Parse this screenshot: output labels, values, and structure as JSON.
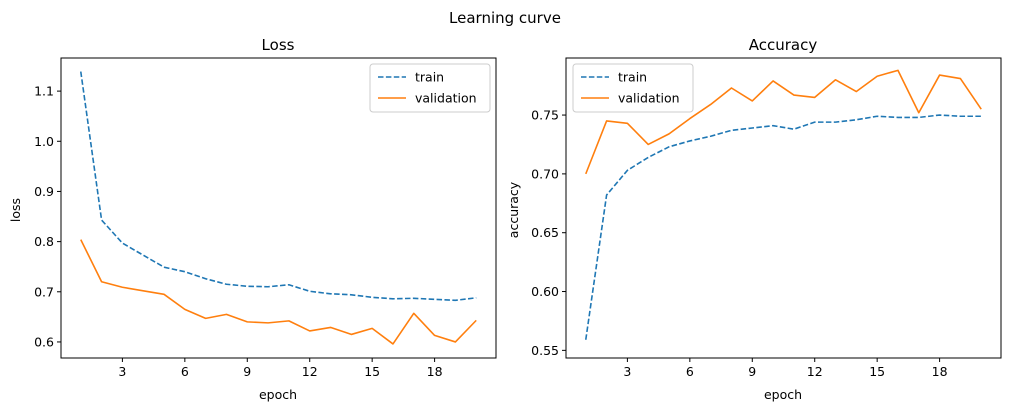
{
  "figure": {
    "suptitle": "Learning curve"
  },
  "chart_data": [
    {
      "type": "line",
      "title": "Loss",
      "xlabel": "epoch",
      "ylabel": "loss",
      "xlim": [
        0.05,
        20.95
      ],
      "ylim": [
        0.568,
        1.166
      ],
      "xticks": [
        3,
        6,
        9,
        12,
        15,
        18
      ],
      "yticks": [
        0.6,
        0.7,
        0.8,
        0.9,
        1.0,
        1.1
      ],
      "ytick_format": "1",
      "legend": {
        "position": "top-right"
      },
      "x": [
        1,
        2,
        3,
        4,
        5,
        6,
        7,
        8,
        9,
        10,
        11,
        12,
        13,
        14,
        15,
        16,
        17,
        18,
        19,
        20
      ],
      "series": [
        {
          "name": "train",
          "color": "#1f77b4",
          "dash": "dashed",
          "values": [
            1.139,
            0.843,
            0.797,
            0.773,
            0.749,
            0.74,
            0.726,
            0.715,
            0.711,
            0.71,
            0.714,
            0.701,
            0.696,
            0.694,
            0.689,
            0.686,
            0.687,
            0.685,
            0.683,
            0.688
          ]
        },
        {
          "name": "validation",
          "color": "#ff7f0e",
          "dash": "solid",
          "values": [
            0.804,
            0.72,
            0.709,
            0.702,
            0.695,
            0.665,
            0.647,
            0.655,
            0.64,
            0.638,
            0.642,
            0.622,
            0.629,
            0.615,
            0.627,
            0.596,
            0.657,
            0.613,
            0.6,
            0.643
          ]
        }
      ]
    },
    {
      "type": "line",
      "title": "Accuracy",
      "xlabel": "epoch",
      "ylabel": "accuracy",
      "xlim": [
        0.05,
        20.95
      ],
      "ylim": [
        0.5435,
        0.7985
      ],
      "xticks": [
        3,
        6,
        9,
        12,
        15,
        18
      ],
      "yticks": [
        0.55,
        0.6,
        0.65,
        0.7,
        0.75
      ],
      "ytick_format": "2",
      "legend": {
        "position": "top-left"
      },
      "x": [
        1,
        2,
        3,
        4,
        5,
        6,
        7,
        8,
        9,
        10,
        11,
        12,
        13,
        14,
        15,
        16,
        17,
        18,
        19,
        20
      ],
      "series": [
        {
          "name": "train",
          "color": "#1f77b4",
          "dash": "dashed",
          "values": [
            0.559,
            0.682,
            0.703,
            0.714,
            0.723,
            0.728,
            0.732,
            0.737,
            0.739,
            0.741,
            0.738,
            0.744,
            0.744,
            0.746,
            0.749,
            0.748,
            0.748,
            0.75,
            0.749,
            0.749
          ]
        },
        {
          "name": "validation",
          "color": "#ff7f0e",
          "dash": "solid",
          "values": [
            0.7,
            0.745,
            0.743,
            0.725,
            0.734,
            0.747,
            0.759,
            0.773,
            0.762,
            0.779,
            0.767,
            0.765,
            0.78,
            0.77,
            0.783,
            0.788,
            0.752,
            0.784,
            0.781,
            0.755
          ]
        }
      ]
    }
  ]
}
